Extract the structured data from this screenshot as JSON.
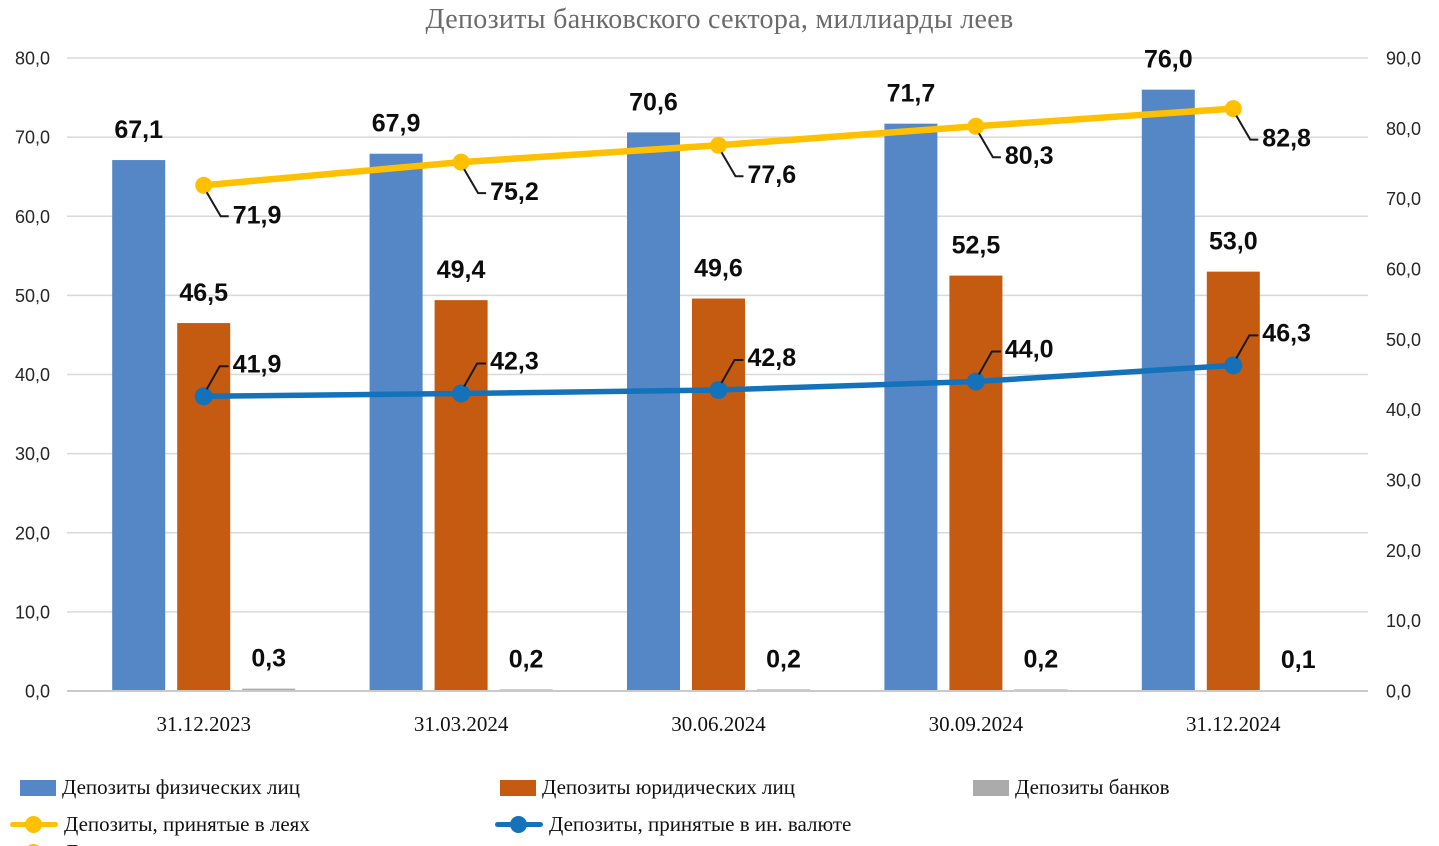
{
  "chart_data": {
    "type": "combo-bar-line",
    "title": "Депозиты банковского сектора, миллиарды леев",
    "categories": [
      "31.12.2023",
      "31.03.2024",
      "30.06.2024",
      "30.09.2024",
      "31.12.2024"
    ],
    "bar_series": [
      {
        "name": "Депозиты физических лиц",
        "color": "#5586C5",
        "axis": "left",
        "values": [
          67.1,
          67.9,
          70.6,
          71.7,
          76.0
        ]
      },
      {
        "name": "Депозиты юридических лиц",
        "color": "#C55A11",
        "axis": "left",
        "values": [
          46.5,
          49.4,
          49.6,
          52.5,
          53.0
        ]
      },
      {
        "name": "Депозиты банков",
        "color": "#ABABAB",
        "axis": "left",
        "values": [
          0.3,
          0.2,
          0.2,
          0.2,
          0.1
        ]
      }
    ],
    "line_series": [
      {
        "name": "Депозиты, принятые в леях",
        "color": "#FFC000",
        "axis": "right",
        "values": [
          71.9,
          75.2,
          77.6,
          80.3,
          82.8
        ],
        "label_side": "below"
      },
      {
        "name": "Депозиты, принятые в ин. валюте",
        "color": "#1472BB",
        "axis": "right",
        "values": [
          41.9,
          42.3,
          42.8,
          44.0,
          46.3
        ],
        "label_side": "above"
      }
    ],
    "left_axis": {
      "min": 0,
      "max": 80,
      "step": 10,
      "tick_labels": [
        "0,0",
        "10,0",
        "20,0",
        "30,0",
        "40,0",
        "50,0",
        "60,0",
        "70,0",
        "80,0"
      ]
    },
    "right_axis": {
      "min": 0,
      "max": 90,
      "step": 10,
      "tick_labels": [
        "0,0",
        "10,0",
        "20,0",
        "30,0",
        "40,0",
        "50,0",
        "60,0",
        "70,0",
        "80,0",
        "90,0"
      ]
    },
    "grid": true,
    "legend_position": "bottom",
    "decimal_separator": ","
  }
}
